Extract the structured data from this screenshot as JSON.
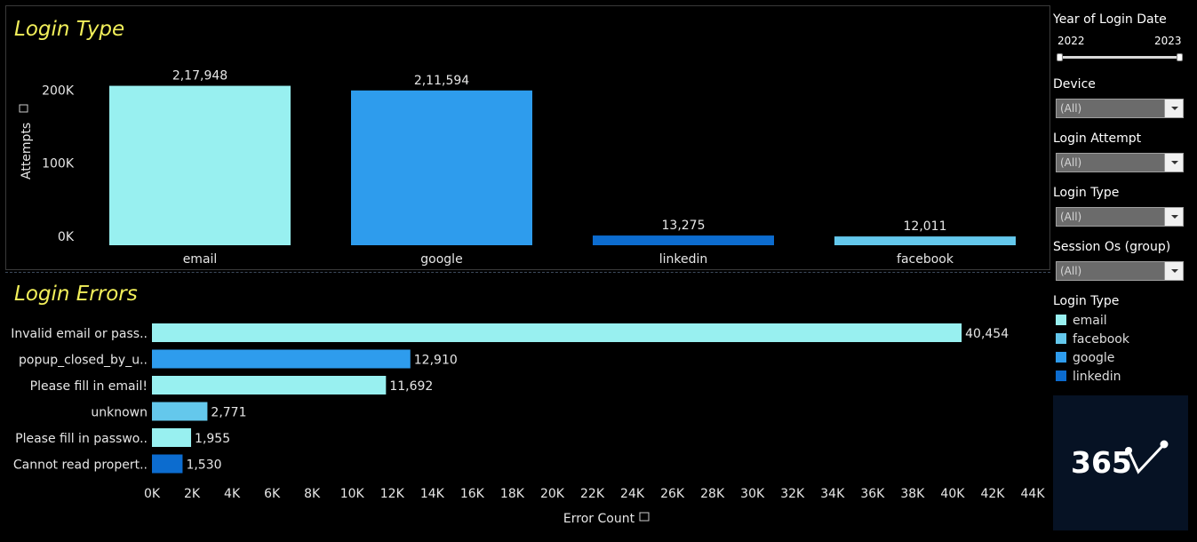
{
  "colors": {
    "email": "#98f0f0",
    "facebook": "#64c8ec",
    "google": "#2e9ced",
    "linkedin": "#0c6ccf",
    "title": "#f2ef5a"
  },
  "top_title": "Login Type",
  "bottom_title": "Login Errors",
  "filters": {
    "year_title": "Year of Login Date",
    "year_start": "2022",
    "year_end": "2023",
    "dropdowns": [
      {
        "label": "Device",
        "value": "(All)"
      },
      {
        "label": "Login Attempt",
        "value": "(All)"
      },
      {
        "label": "Login Type",
        "value": "(All)"
      },
      {
        "label": "Session Os (group)",
        "value": "(All)"
      }
    ]
  },
  "legend": {
    "title": "Login Type",
    "items": [
      {
        "label": "email",
        "color": "#98f0f0"
      },
      {
        "label": "facebook",
        "color": "#64c8ec"
      },
      {
        "label": "google",
        "color": "#2e9ced"
      },
      {
        "label": "linkedin",
        "color": "#0c6ccf"
      }
    ]
  },
  "logo_text": "365",
  "chart_data": [
    {
      "type": "bar",
      "title": "Login Type",
      "ylabel": "Attempts",
      "xlabel": "",
      "categories": [
        "email",
        "google",
        "linkedin",
        "facebook"
      ],
      "values": [
        217948,
        211594,
        13275,
        12011
      ],
      "value_labels": [
        "2,17,948",
        "2,11,594",
        "13,275",
        "12,011"
      ],
      "colors": [
        "#98f0f0",
        "#2e9ced",
        "#0c6ccf",
        "#64c8ec"
      ],
      "yticks": [
        0,
        100000,
        200000
      ],
      "ytick_labels": [
        "0K",
        "100K",
        "200K"
      ],
      "ylim": [
        0,
        232000
      ],
      "grid": false
    },
    {
      "type": "bar",
      "orientation": "horizontal",
      "title": "Login Errors",
      "xlabel": "Error Count",
      "ylabel": "",
      "categories": [
        "Invalid email or pass..",
        "popup_closed_by_u..",
        "Please fill in email!",
        "unknown",
        "Please fill in passwo..",
        "Cannot read propert.."
      ],
      "values": [
        40454,
        12910,
        11692,
        2771,
        1955,
        1530
      ],
      "value_labels": [
        "40,454",
        "12,910",
        "11,692",
        "2,771",
        "1,955",
        "1,530"
      ],
      "colors": [
        "#98f0f0",
        "#2e9ced",
        "#98f0f0",
        "#64c8ec",
        "#98f0f0",
        "#0c6ccf"
      ],
      "xticks": [
        0,
        2000,
        4000,
        6000,
        8000,
        10000,
        12000,
        14000,
        16000,
        18000,
        20000,
        22000,
        24000,
        26000,
        28000,
        30000,
        32000,
        34000,
        36000,
        38000,
        40000,
        42000,
        44000
      ],
      "xtick_labels": [
        "0K",
        "2K",
        "4K",
        "6K",
        "8K",
        "10K",
        "12K",
        "14K",
        "16K",
        "18K",
        "20K",
        "22K",
        "24K",
        "26K",
        "28K",
        "30K",
        "32K",
        "34K",
        "36K",
        "38K",
        "40K",
        "42K",
        "44K"
      ],
      "xlim": [
        0,
        44000
      ],
      "grid": false
    }
  ]
}
